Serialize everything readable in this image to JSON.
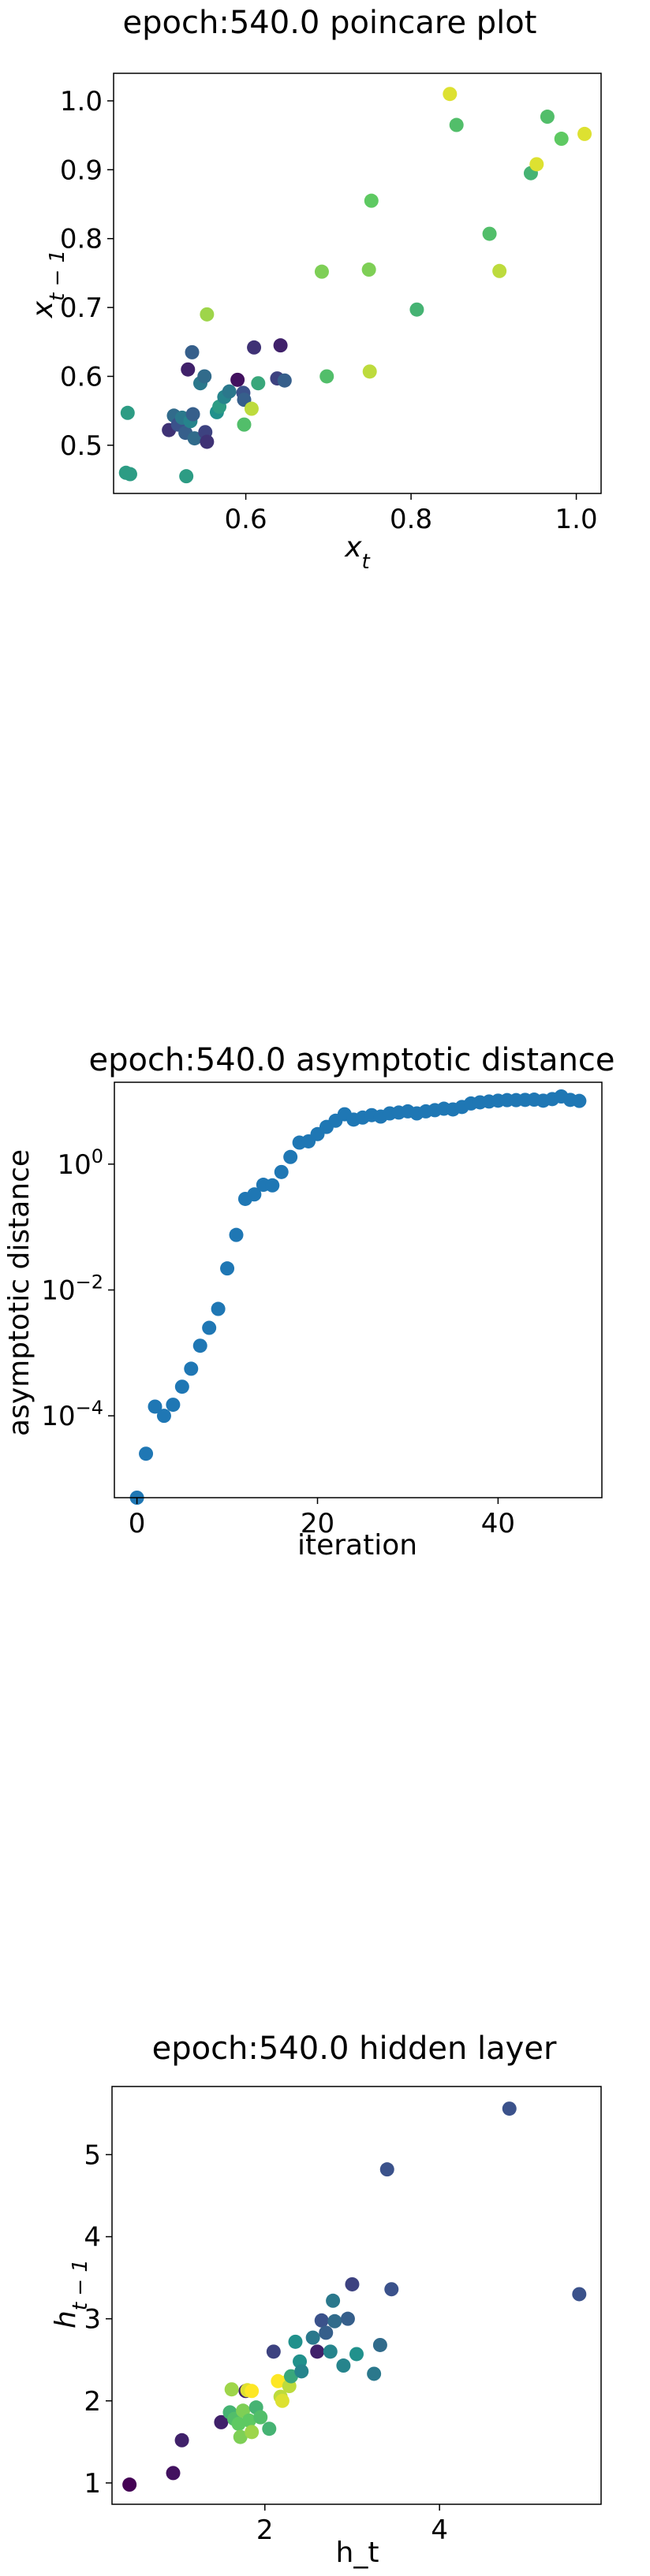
{
  "figure": {
    "background": "#ffffff",
    "default_point_color": "#1f77b4"
  },
  "chart_data": [
    {
      "type": "scatter",
      "title": "epoch:540.0 poincare plot",
      "xlabel": "x_t",
      "ylabel": "x_{t-1}",
      "xlim": [
        0.44,
        1.03
      ],
      "ylim": [
        0.43,
        1.04
      ],
      "xticks": [
        0.6,
        0.8,
        1.0
      ],
      "xtick_labels": [
        "0.6",
        "0.8",
        "1.0"
      ],
      "yticks": [
        0.5,
        0.6,
        0.7,
        0.8,
        0.9,
        1.0
      ],
      "ytick_labels": [
        "0.5",
        "0.6",
        "0.7",
        "0.8",
        "0.9",
        "1.0"
      ],
      "colormap": "viridis",
      "points": [
        {
          "x": 0.455,
          "y": 0.46,
          "c": 0.55
        },
        {
          "x": 0.46,
          "y": 0.458,
          "c": 0.55
        },
        {
          "x": 0.457,
          "y": 0.547,
          "c": 0.55
        },
        {
          "x": 0.507,
          "y": 0.522,
          "c": 0.15
        },
        {
          "x": 0.513,
          "y": 0.543,
          "c": 0.35
        },
        {
          "x": 0.518,
          "y": 0.53,
          "c": 0.25
        },
        {
          "x": 0.523,
          "y": 0.54,
          "c": 0.4
        },
        {
          "x": 0.527,
          "y": 0.518,
          "c": 0.3
        },
        {
          "x": 0.533,
          "y": 0.535,
          "c": 0.45
        },
        {
          "x": 0.536,
          "y": 0.545,
          "c": 0.3
        },
        {
          "x": 0.538,
          "y": 0.51,
          "c": 0.35
        },
        {
          "x": 0.528,
          "y": 0.455,
          "c": 0.55
        },
        {
          "x": 0.53,
          "y": 0.61,
          "c": 0.1
        },
        {
          "x": 0.535,
          "y": 0.635,
          "c": 0.3
        },
        {
          "x": 0.545,
          "y": 0.59,
          "c": 0.4
        },
        {
          "x": 0.55,
          "y": 0.6,
          "c": 0.35
        },
        {
          "x": 0.551,
          "y": 0.519,
          "c": 0.2
        },
        {
          "x": 0.553,
          "y": 0.505,
          "c": 0.15
        },
        {
          "x": 0.553,
          "y": 0.69,
          "c": 0.85
        },
        {
          "x": 0.565,
          "y": 0.548,
          "c": 0.5
        },
        {
          "x": 0.568,
          "y": 0.556,
          "c": 0.55
        },
        {
          "x": 0.574,
          "y": 0.57,
          "c": 0.45
        },
        {
          "x": 0.58,
          "y": 0.578,
          "c": 0.4
        },
        {
          "x": 0.59,
          "y": 0.595,
          "c": 0.05
        },
        {
          "x": 0.597,
          "y": 0.576,
          "c": 0.25
        },
        {
          "x": 0.598,
          "y": 0.566,
          "c": 0.3
        },
        {
          "x": 0.598,
          "y": 0.53,
          "c": 0.7
        },
        {
          "x": 0.607,
          "y": 0.553,
          "c": 0.9
        },
        {
          "x": 0.61,
          "y": 0.642,
          "c": 0.15
        },
        {
          "x": 0.615,
          "y": 0.59,
          "c": 0.6
        },
        {
          "x": 0.638,
          "y": 0.597,
          "c": 0.2
        },
        {
          "x": 0.642,
          "y": 0.645,
          "c": 0.1
        },
        {
          "x": 0.647,
          "y": 0.594,
          "c": 0.3
        },
        {
          "x": 0.692,
          "y": 0.752,
          "c": 0.8
        },
        {
          "x": 0.698,
          "y": 0.6,
          "c": 0.7
        },
        {
          "x": 0.749,
          "y": 0.755,
          "c": 0.8
        },
        {
          "x": 0.75,
          "y": 0.607,
          "c": 0.9
        },
        {
          "x": 0.752,
          "y": 0.855,
          "c": 0.75
        },
        {
          "x": 0.807,
          "y": 0.697,
          "c": 0.65
        },
        {
          "x": 0.847,
          "y": 1.01,
          "c": 0.95
        },
        {
          "x": 0.855,
          "y": 0.965,
          "c": 0.7
        },
        {
          "x": 0.895,
          "y": 0.807,
          "c": 0.7
        },
        {
          "x": 0.907,
          "y": 0.753,
          "c": 0.9
        },
        {
          "x": 0.945,
          "y": 0.895,
          "c": 0.65
        },
        {
          "x": 0.952,
          "y": 0.908,
          "c": 0.95
        },
        {
          "x": 0.965,
          "y": 0.977,
          "c": 0.7
        },
        {
          "x": 0.982,
          "y": 0.945,
          "c": 0.75
        },
        {
          "x": 1.01,
          "y": 0.952,
          "c": 0.95
        }
      ]
    },
    {
      "type": "scatter",
      "title": "epoch:540.0 asymptotic distance",
      "xlabel": "iteration",
      "ylabel": "asymptotic distance",
      "yscale": "log",
      "xlim": [
        -2.5,
        51.5
      ],
      "ylim": [
        5e-06,
        20
      ],
      "xticks": [
        0,
        20,
        40
      ],
      "xtick_labels": [
        "0",
        "20",
        "40"
      ],
      "yticks": [
        0.0001,
        0.01,
        1
      ],
      "ytick_base": "10",
      "ytick_exponents": [
        "−4",
        "−2",
        "0"
      ],
      "x": [
        0,
        1,
        2,
        3,
        4,
        5,
        6,
        7,
        8,
        9,
        10,
        11,
        12,
        13,
        14,
        15,
        16,
        17,
        18,
        19,
        20,
        21,
        22,
        23,
        24,
        25,
        26,
        27,
        28,
        29,
        30,
        31,
        32,
        33,
        34,
        35,
        36,
        37,
        38,
        39,
        40,
        41,
        42,
        43,
        44,
        45,
        46,
        47,
        48,
        49
      ],
      "y": [
        5e-06,
        2.5e-05,
        0.00014,
        0.0001,
        0.00015,
        0.00029,
        0.00056,
        0.0013,
        0.0025,
        0.005,
        0.022,
        0.075,
        0.28,
        0.33,
        0.47,
        0.46,
        0.75,
        1.3,
        2.2,
        2.3,
        3.0,
        3.9,
        4.9,
        6.2,
        5.1,
        5.5,
        6.0,
        5.7,
        6.4,
        6.6,
        6.9,
        6.4,
        6.9,
        7.2,
        7.6,
        7.4,
        8.1,
        9.2,
        9.6,
        9.9,
        10.2,
        10.4,
        10.4,
        10.5,
        10.6,
        10.2,
        10.8,
        11.9,
        10.5,
        10.1
      ]
    },
    {
      "type": "scatter",
      "title": "epoch:540.0 hidden layer",
      "xlabel": "h_t",
      "ylabel": "h_{t-1}",
      "xlim": [
        0.25,
        5.85
      ],
      "ylim": [
        0.74,
        5.83
      ],
      "xticks": [
        2,
        4
      ],
      "xtick_labels": [
        "2",
        "4"
      ],
      "yticks": [
        1,
        2,
        3,
        4,
        5
      ],
      "ytick_labels": [
        "1",
        "2",
        "3",
        "4",
        "5"
      ],
      "colormap": "viridis",
      "points": [
        {
          "x": 0.45,
          "y": 0.98,
          "c": 0.0
        },
        {
          "x": 0.95,
          "y": 1.12,
          "c": 0.05
        },
        {
          "x": 1.05,
          "y": 1.52,
          "c": 0.1
        },
        {
          "x": 1.5,
          "y": 1.74,
          "c": 0.1
        },
        {
          "x": 1.6,
          "y": 1.86,
          "c": 0.65
        },
        {
          "x": 1.65,
          "y": 1.78,
          "c": 0.7
        },
        {
          "x": 1.7,
          "y": 1.72,
          "c": 0.75
        },
        {
          "x": 1.72,
          "y": 1.56,
          "c": 0.8
        },
        {
          "x": 1.75,
          "y": 1.88,
          "c": 0.8
        },
        {
          "x": 1.78,
          "y": 2.12,
          "c": 0.1
        },
        {
          "x": 1.82,
          "y": 1.76,
          "c": 0.75
        },
        {
          "x": 1.85,
          "y": 1.62,
          "c": 0.85
        },
        {
          "x": 1.9,
          "y": 1.92,
          "c": 0.65
        },
        {
          "x": 1.95,
          "y": 1.8,
          "c": 0.7
        },
        {
          "x": 1.62,
          "y": 2.14,
          "c": 0.85
        },
        {
          "x": 1.8,
          "y": 2.13,
          "c": 0.95
        },
        {
          "x": 1.85,
          "y": 2.12,
          "c": 1.0
        },
        {
          "x": 2.05,
          "y": 1.66,
          "c": 0.65
        },
        {
          "x": 2.1,
          "y": 2.6,
          "c": 0.2
        },
        {
          "x": 2.15,
          "y": 2.24,
          "c": 1.0
        },
        {
          "x": 2.18,
          "y": 2.05,
          "c": 0.9
        },
        {
          "x": 2.2,
          "y": 2.0,
          "c": 0.95
        },
        {
          "x": 2.25,
          "y": 2.23,
          "c": 1.0
        },
        {
          "x": 2.28,
          "y": 2.18,
          "c": 0.9
        },
        {
          "x": 2.3,
          "y": 2.3,
          "c": 0.6
        },
        {
          "x": 2.35,
          "y": 2.72,
          "c": 0.5
        },
        {
          "x": 2.4,
          "y": 2.48,
          "c": 0.5
        },
        {
          "x": 2.42,
          "y": 2.36,
          "c": 0.45
        },
        {
          "x": 2.55,
          "y": 2.77,
          "c": 0.4
        },
        {
          "x": 2.6,
          "y": 2.6,
          "c": 0.1
        },
        {
          "x": 2.65,
          "y": 2.98,
          "c": 0.25
        },
        {
          "x": 2.7,
          "y": 2.83,
          "c": 0.3
        },
        {
          "x": 2.75,
          "y": 2.6,
          "c": 0.45
        },
        {
          "x": 2.78,
          "y": 3.22,
          "c": 0.4
        },
        {
          "x": 2.8,
          "y": 2.97,
          "c": 0.35
        },
        {
          "x": 2.9,
          "y": 2.43,
          "c": 0.45
        },
        {
          "x": 2.95,
          "y": 3.0,
          "c": 0.3
        },
        {
          "x": 3.0,
          "y": 3.42,
          "c": 0.2
        },
        {
          "x": 3.05,
          "y": 2.57,
          "c": 0.5
        },
        {
          "x": 3.25,
          "y": 2.33,
          "c": 0.4
        },
        {
          "x": 3.32,
          "y": 2.68,
          "c": 0.35
        },
        {
          "x": 3.4,
          "y": 4.82,
          "c": 0.25
        },
        {
          "x": 3.45,
          "y": 3.36,
          "c": 0.25
        },
        {
          "x": 4.8,
          "y": 5.56,
          "c": 0.25
        },
        {
          "x": 5.6,
          "y": 3.3,
          "c": 0.25
        }
      ]
    }
  ]
}
